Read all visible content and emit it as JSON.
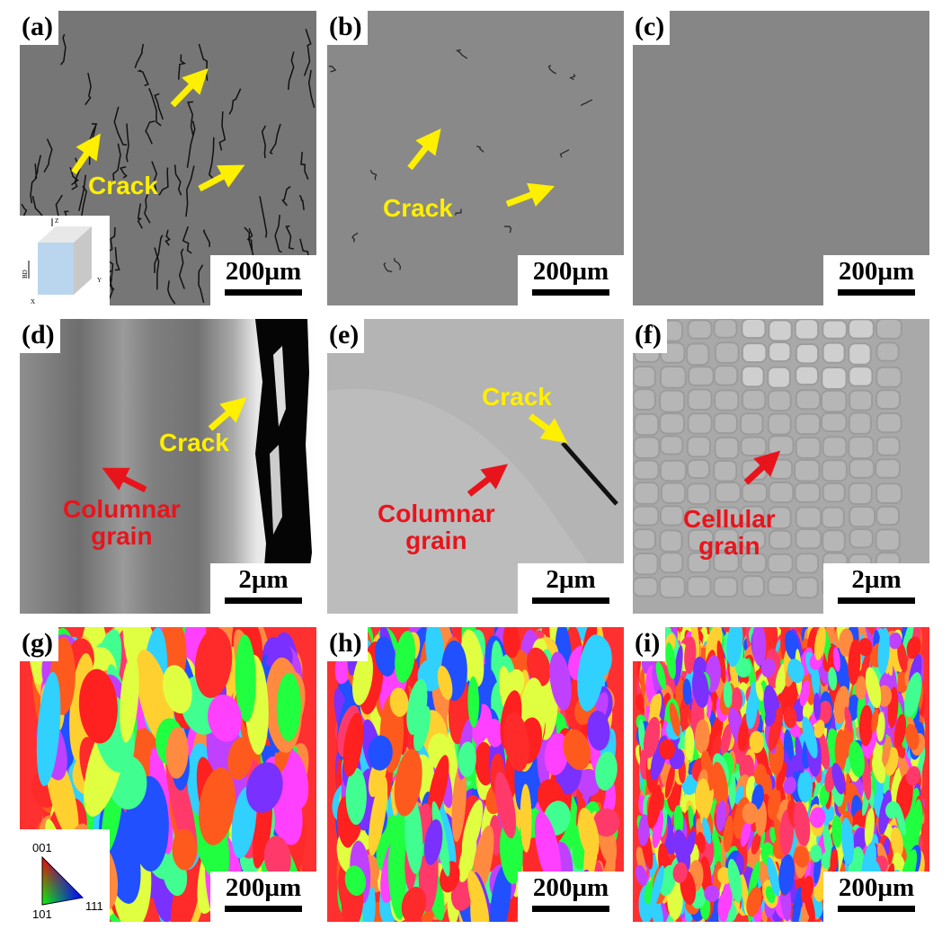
{
  "panels": [
    {
      "id": "a",
      "label": "(a)",
      "scale": "200µm",
      "annotations": [
        "Crack"
      ],
      "inset": {
        "axes": [
          "Z",
          "BD",
          "Y",
          "X"
        ]
      }
    },
    {
      "id": "b",
      "label": "(b)",
      "scale": "200µm",
      "annotations": [
        "Crack"
      ]
    },
    {
      "id": "c",
      "label": "(c)",
      "scale": "200µm"
    },
    {
      "id": "d",
      "label": "(d)",
      "scale": "2µm",
      "annotations": [
        "Crack",
        "Columnar\ngrain"
      ]
    },
    {
      "id": "e",
      "label": "(e)",
      "scale": "2µm",
      "annotations": [
        "Crack",
        "Columnar\ngrain"
      ]
    },
    {
      "id": "f",
      "label": "(f)",
      "scale": "2µm",
      "annotations": [
        "Cellular\ngrain"
      ]
    },
    {
      "id": "g",
      "label": "(g)",
      "scale": "200µm",
      "legend": {
        "top": "001",
        "bottom_left": "101",
        "bottom_right": "111"
      }
    },
    {
      "id": "h",
      "label": "(h)",
      "scale": "200µm"
    },
    {
      "id": "i",
      "label": "(i)",
      "scale": "200µm"
    }
  ],
  "colors": {
    "annotation_yellow": "#ffef00",
    "annotation_red": "#e8141c"
  }
}
